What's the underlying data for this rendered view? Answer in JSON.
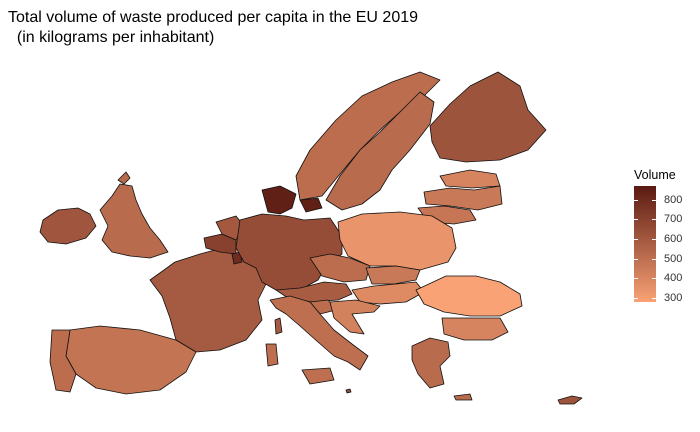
{
  "title": {
    "line1": "Total volume of waste produced per capita in the EU 2019",
    "line2": "  (in kilograms per inhabitant)"
  },
  "legend": {
    "title": "Volume",
    "ticks": [
      800,
      700,
      600,
      500,
      400,
      300
    ],
    "range": [
      280,
      870
    ],
    "color_low": "#F9A275",
    "color_high": "#5A1A12"
  },
  "chart_data": {
    "type": "choropleth",
    "region": "EU",
    "year": 2019,
    "unit": "kg per inhabitant",
    "countries": [
      {
        "name": "Ireland",
        "value": 610
      },
      {
        "name": "United Kingdom",
        "value": 520
      },
      {
        "name": "France",
        "value": 590
      },
      {
        "name": "Spain",
        "value": 480
      },
      {
        "name": "Portugal",
        "value": 510
      },
      {
        "name": "Belgium",
        "value": 700
      },
      {
        "name": "Netherlands",
        "value": 600
      },
      {
        "name": "Luxembourg",
        "value": 790
      },
      {
        "name": "Germany",
        "value": 650
      },
      {
        "name": "Denmark",
        "value": 845
      },
      {
        "name": "Norway",
        "value": 510
      },
      {
        "name": "Sweden",
        "value": 520
      },
      {
        "name": "Finland",
        "value": 620
      },
      {
        "name": "Estonia",
        "value": 410
      },
      {
        "name": "Latvia",
        "value": 460
      },
      {
        "name": "Lithuania",
        "value": 470
      },
      {
        "name": "Poland",
        "value": 340
      },
      {
        "name": "Czechia",
        "value": 510
      },
      {
        "name": "Slovakia",
        "value": 460
      },
      {
        "name": "Austria",
        "value": 580
      },
      {
        "name": "Hungary",
        "value": 380
      },
      {
        "name": "Romania",
        "value": 280
      },
      {
        "name": "Bulgaria",
        "value": 410
      },
      {
        "name": "Slovenia",
        "value": 510
      },
      {
        "name": "Croatia",
        "value": 420
      },
      {
        "name": "Italy",
        "value": 500
      },
      {
        "name": "Greece",
        "value": 520
      },
      {
        "name": "Cyprus",
        "value": 620
      },
      {
        "name": "Malta",
        "value": 640
      }
    ]
  }
}
